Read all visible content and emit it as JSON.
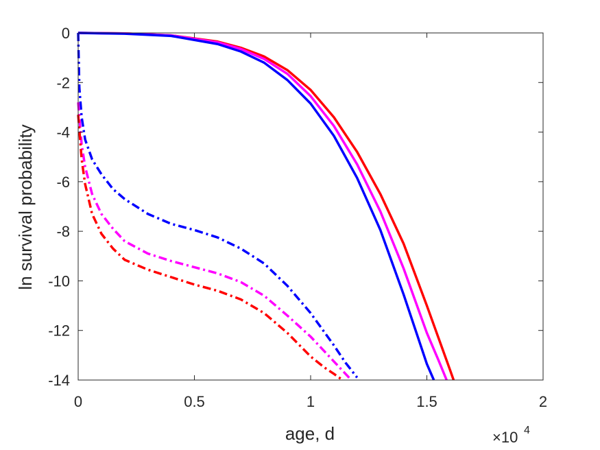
{
  "chart_data": {
    "type": "line",
    "title": "",
    "xlabel": "age, d",
    "ylabel": "ln survival probability",
    "xlim": [
      0,
      20000
    ],
    "ylim": [
      -14,
      0
    ],
    "x_tick_labels": [
      "0",
      "0.5",
      "1",
      "1.5",
      "2"
    ],
    "x_tick_values": [
      0,
      5000,
      10000,
      15000,
      20000
    ],
    "y_tick_labels": [
      "0",
      "-2",
      "-4",
      "-6",
      "-8",
      "-10",
      "-12",
      "-14"
    ],
    "y_tick_values": [
      0,
      -2,
      -4,
      -6,
      -8,
      -10,
      -12,
      -14
    ],
    "x_exponent_label": {
      "base": "×10",
      "power": "4"
    },
    "grid": false,
    "legend": "none",
    "series": [
      {
        "color": "#ff0000",
        "style": "solid",
        "x": [
          0,
          2000,
          4000,
          6000,
          7000,
          8000,
          9000,
          10000,
          11000,
          12000,
          13000,
          14000,
          15000,
          15500,
          16000,
          16150
        ],
        "y": [
          0,
          -0.02,
          -0.1,
          -0.35,
          -0.6,
          -0.95,
          -1.5,
          -2.3,
          -3.4,
          -4.8,
          -6.5,
          -8.5,
          -11.0,
          -12.3,
          -13.6,
          -14.0
        ]
      },
      {
        "color": "#ff00ff",
        "style": "solid",
        "x": [
          0,
          2000,
          4000,
          6000,
          7000,
          8000,
          9000,
          10000,
          11000,
          12000,
          13000,
          14000,
          15000,
          15500,
          15850
        ],
        "y": [
          0,
          -0.02,
          -0.1,
          -0.38,
          -0.65,
          -1.05,
          -1.65,
          -2.55,
          -3.75,
          -5.3,
          -7.2,
          -9.5,
          -12.1,
          -13.2,
          -14.0
        ]
      },
      {
        "color": "#0000ff",
        "style": "solid",
        "x": [
          0,
          2000,
          4000,
          6000,
          7000,
          8000,
          9000,
          10000,
          11000,
          12000,
          13000,
          14000,
          14500,
          15000,
          15300
        ],
        "y": [
          0,
          -0.03,
          -0.12,
          -0.45,
          -0.75,
          -1.2,
          -1.9,
          -2.85,
          -4.15,
          -5.85,
          -7.95,
          -10.55,
          -11.95,
          -13.35,
          -14.0
        ]
      },
      {
        "color": "#0000ff",
        "style": "dashdot",
        "x": [
          0,
          50,
          150,
          300,
          600,
          1000,
          1500,
          2000,
          3000,
          4000,
          5000,
          6000,
          7000,
          8000,
          9000,
          10000,
          11000,
          11500,
          12000
        ],
        "y": [
          0,
          -2.2,
          -3.4,
          -4.3,
          -5.1,
          -5.7,
          -6.3,
          -6.7,
          -7.3,
          -7.7,
          -7.95,
          -8.25,
          -8.7,
          -9.3,
          -10.2,
          -11.3,
          -12.6,
          -13.3,
          -13.9
        ]
      },
      {
        "color": "#ff00ff",
        "style": "dashdot",
        "x": [
          0,
          150,
          300,
          600,
          1000,
          1500,
          2000,
          3000,
          4000,
          5000,
          6000,
          7000,
          8000,
          9000,
          10000,
          11000,
          11500,
          11700
        ],
        "y": [
          -2.8,
          -4.5,
          -5.4,
          -6.5,
          -7.3,
          -7.9,
          -8.4,
          -8.9,
          -9.2,
          -9.45,
          -9.7,
          -10.05,
          -10.6,
          -11.4,
          -12.25,
          -13.25,
          -13.75,
          -13.95
        ]
      },
      {
        "color": "#ff0000",
        "style": "dashdot",
        "x": [
          0,
          150,
          300,
          600,
          1000,
          1500,
          2000,
          3000,
          4000,
          5000,
          6000,
          7000,
          8000,
          9000,
          10000,
          10600,
          11000,
          11300
        ],
        "y": [
          -3.3,
          -5.1,
          -6.1,
          -7.3,
          -8.1,
          -8.7,
          -9.15,
          -9.55,
          -9.85,
          -10.15,
          -10.4,
          -10.75,
          -11.3,
          -12.1,
          -13.05,
          -13.5,
          -13.75,
          -13.95
        ]
      }
    ]
  }
}
